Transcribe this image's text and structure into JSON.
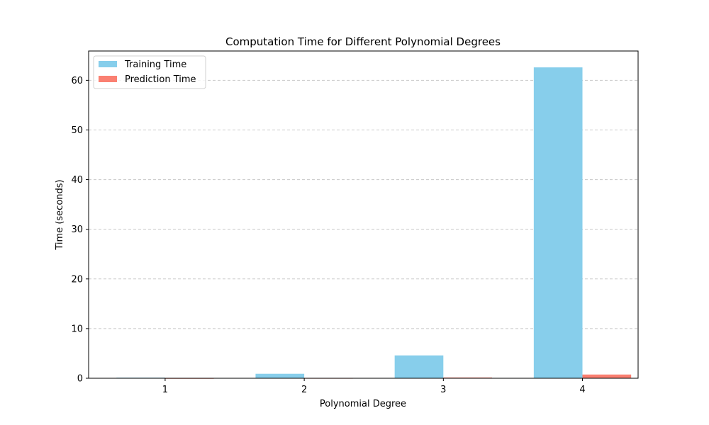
{
  "chart_data": {
    "type": "bar",
    "title": "Computation Time for Different Polynomial Degrees",
    "xlabel": "Polynomial Degree",
    "ylabel": "Time (seconds)",
    "categories": [
      "1",
      "2",
      "3",
      "4"
    ],
    "series": [
      {
        "name": "Training Time",
        "color": "#87ceeb",
        "values": [
          0.12,
          0.9,
          4.6,
          62.6
        ]
      },
      {
        "name": "Prediction Time",
        "color": "#fa8072",
        "values": [
          0.01,
          0.03,
          0.15,
          0.75
        ]
      }
    ],
    "ylim": [
      0,
      65.9
    ],
    "yticks": [
      0,
      10,
      20,
      30,
      40,
      50,
      60
    ],
    "grid": {
      "y": true,
      "style": "dashed",
      "color": "#c8c8c8"
    },
    "legend_position": "top-left"
  }
}
